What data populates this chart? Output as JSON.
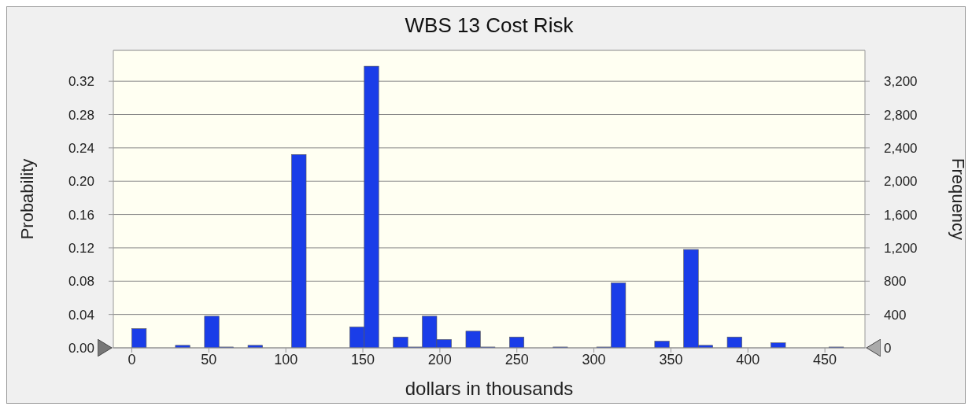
{
  "chart_data": {
    "type": "histogram",
    "title": "WBS 13 Cost Risk",
    "xlabel": "dollars in thousands",
    "ylabel": "Probability",
    "y2label": "Frequency",
    "bins": [
      0,
      9.4,
      18.9,
      28.3,
      37.7,
      47.2,
      56.6,
      66,
      75.4,
      84.9,
      94.3,
      103.7,
      113.2,
      122.6,
      132,
      141.5,
      150.9,
      160.3,
      169.7,
      179.2,
      188.6,
      198,
      207.5,
      216.9,
      226.3,
      235.8,
      245.2,
      254.6,
      264,
      273.5,
      282.9,
      292.3,
      301.8,
      311.2,
      320.6,
      330.1,
      339.5,
      348.9,
      358.3,
      367.8,
      377.2,
      386.6,
      396.1,
      405.5,
      414.9,
      424.4,
      433.8,
      443.2,
      452.6,
      462.1
    ],
    "values": [
      0.023,
      0,
      0,
      0.003,
      0,
      0.038,
      0.001,
      0,
      0.003,
      0,
      0,
      0.232,
      0,
      0,
      0,
      0.025,
      0.338,
      0,
      0.013,
      0.001,
      0.038,
      0.01,
      0,
      0.02,
      0.001,
      0,
      0.013,
      0,
      0,
      0.001,
      0,
      0,
      0.001,
      0.078,
      0,
      0,
      0.008,
      0,
      0.118,
      0.003,
      0,
      0.013,
      0,
      0,
      0.006,
      0,
      0,
      0,
      0.001
    ],
    "color": "#1a3de8",
    "xlim": [
      -12,
      476
    ],
    "xticks": [
      0,
      50,
      100,
      150,
      200,
      250,
      300,
      350,
      400,
      450
    ],
    "ylim": [
      0,
      0.357
    ],
    "yticks": [
      {
        "value": 0,
        "label": "0.00"
      },
      {
        "value": 0.04,
        "label": "0.04"
      },
      {
        "value": 0.08,
        "label": "0.08"
      },
      {
        "value": 0.12,
        "label": "0.12"
      },
      {
        "value": 0.16,
        "label": "0.16"
      },
      {
        "value": 0.2,
        "label": "0.20"
      },
      {
        "value": 0.24,
        "label": "0.24"
      },
      {
        "value": 0.28,
        "label": "0.28"
      },
      {
        "value": 0.32,
        "label": "0.32"
      }
    ],
    "y2lim": [
      0,
      3570
    ],
    "y2ticks": [
      0,
      400,
      800,
      {
        "value": 1200,
        "label": "1,200"
      },
      {
        "value": 1600,
        "label": "1,600"
      },
      {
        "value": 2000,
        "label": "2,000"
      },
      {
        "value": 2400,
        "label": "2,400"
      },
      {
        "value": 2800,
        "label": "2,800"
      },
      {
        "value": 3200,
        "label": "3,200"
      }
    ],
    "grid": "y"
  }
}
